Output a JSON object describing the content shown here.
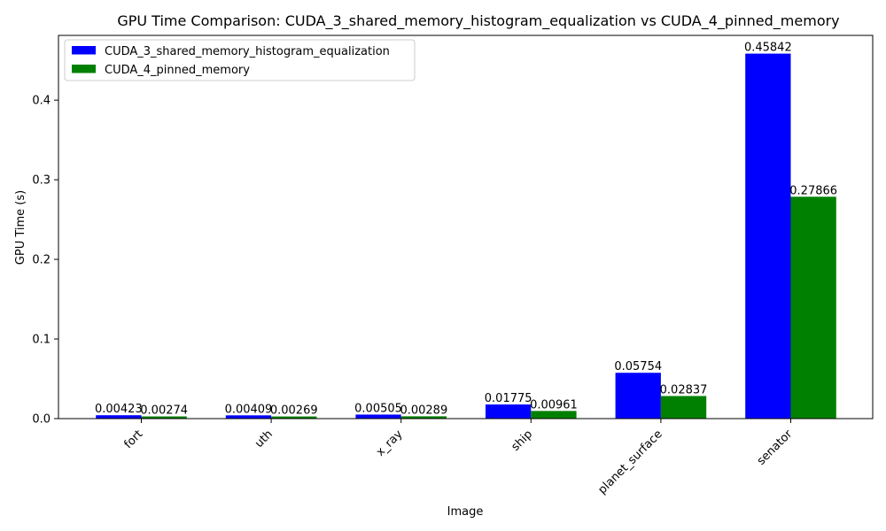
{
  "chart_data": {
    "type": "bar",
    "title": "GPU Time Comparison: CUDA_3_shared_memory_histogram_equalization vs CUDA_4_pinned_memory",
    "xlabel": "Image",
    "ylabel": "GPU Time (s)",
    "categories": [
      "fort",
      "uth",
      "x_ray",
      "ship",
      "planet_surface",
      "senator"
    ],
    "series": [
      {
        "name": "CUDA_3_shared_memory_histogram_equalization",
        "color": "#0000ff",
        "values": [
          0.00423,
          0.00409,
          0.00505,
          0.01775,
          0.05754,
          0.45842
        ],
        "labels": [
          "0.00423",
          "0.00409",
          "0.00505",
          "0.01775",
          "0.05754",
          "0.45842"
        ]
      },
      {
        "name": "CUDA_4_pinned_memory",
        "color": "#008000",
        "values": [
          0.00274,
          0.00269,
          0.00289,
          0.00961,
          0.02837,
          0.27866
        ],
        "labels": [
          "0.00274",
          "0.00269",
          "0.00289",
          "0.00961",
          "0.02837",
          "0.27866"
        ]
      }
    ],
    "yticks": [
      0.0,
      0.1,
      0.2,
      0.3,
      0.4
    ],
    "ytick_labels": [
      "0.0",
      "0.1",
      "0.2",
      "0.3",
      "0.4"
    ],
    "ylim": [
      0,
      0.4813
    ],
    "legend": "top-left",
    "grid": false
  }
}
